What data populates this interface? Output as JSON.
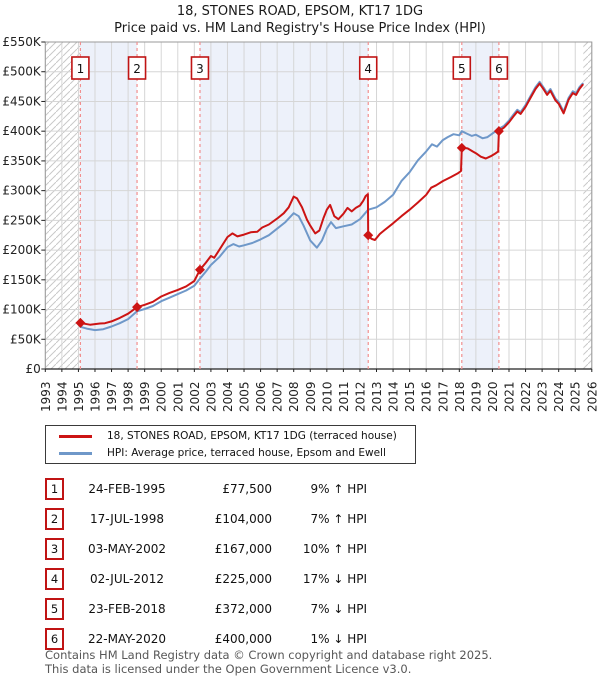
{
  "title": "18, STONES ROAD, EPSOM, KT17 1DG",
  "subtitle": "Price paid vs. HM Land Registry's House Price Index (HPI)",
  "legend": {
    "series1": "18, STONES ROAD, EPSOM, KT17 1DG (terraced house)",
    "series2": "HPI: Average price, terraced house, Epsom and Ewell"
  },
  "transactions": [
    {
      "n": "1",
      "date": "24-FEB-1995",
      "price": "£77,500",
      "hpi": "9% ↑ HPI"
    },
    {
      "n": "2",
      "date": "17-JUL-1998",
      "price": "£104,000",
      "hpi": "7% ↑ HPI"
    },
    {
      "n": "3",
      "date": "03-MAY-2002",
      "price": "£167,000",
      "hpi": "10% ↑ HPI"
    },
    {
      "n": "4",
      "date": "02-JUL-2012",
      "price": "£225,000",
      "hpi": "17% ↓ HPI"
    },
    {
      "n": "5",
      "date": "23-FEB-2018",
      "price": "£372,000",
      "hpi": "7% ↓ HPI"
    },
    {
      "n": "6",
      "date": "22-MAY-2020",
      "price": "£400,000",
      "hpi": "1% ↓ HPI"
    }
  ],
  "footer": {
    "line1": "Contains HM Land Registry data © Crown copyright and database right 2025.",
    "line2": "This data is licensed under the Open Government Licence v3.0."
  },
  "chart_data": {
    "type": "line",
    "x_range": [
      1993,
      2026
    ],
    "y_range": [
      0,
      550
    ],
    "y_tick_step": 50,
    "y_tick_labels": [
      "£0",
      "£50K",
      "£100K",
      "£150K",
      "£200K",
      "£250K",
      "£300K",
      "£350K",
      "£400K",
      "£450K",
      "£500K",
      "£550K"
    ],
    "x_ticks": [
      1993,
      1994,
      1995,
      1996,
      1997,
      1998,
      1999,
      2000,
      2001,
      2002,
      2003,
      2004,
      2005,
      2006,
      2007,
      2008,
      2009,
      2010,
      2011,
      2012,
      2013,
      2014,
      2015,
      2016,
      2017,
      2018,
      2019,
      2020,
      2021,
      2022,
      2023,
      2024,
      2025,
      2026
    ],
    "colors": {
      "price": "#cc1414",
      "hpi": "#6f98c9",
      "dashed": "#f18f8f",
      "band": "#edf1fa",
      "grid": "#d6d6d6",
      "border": "#9a9a9a",
      "hatch": "#c9c9c9",
      "box_border": "#c01414",
      "axis": "#222222"
    },
    "hatch_regions": [
      [
        1993,
        1995.12
      ],
      [
        2025.49,
        2026
      ]
    ],
    "shaded_bands": [
      [
        1995.12,
        1998.54
      ],
      [
        2002.34,
        2012.5
      ],
      [
        2018.15,
        2020.39
      ]
    ],
    "sales": [
      {
        "n": "1",
        "x": 1995.12,
        "y": 77.5
      },
      {
        "n": "2",
        "x": 1998.54,
        "y": 104
      },
      {
        "n": "3",
        "x": 2002.34,
        "y": 167
      },
      {
        "n": "4",
        "x": 2012.5,
        "y": 225
      },
      {
        "n": "5",
        "x": 2018.15,
        "y": 372
      },
      {
        "n": "6",
        "x": 2020.39,
        "y": 400
      }
    ],
    "series": [
      {
        "name": "price_paid",
        "color": "#cc1414",
        "width": 2,
        "points": [
          [
            1995.12,
            77.5
          ],
          [
            1995.4,
            76
          ],
          [
            1995.7,
            74.5
          ],
          [
            1996,
            75.5
          ],
          [
            1996.3,
            76.5
          ],
          [
            1996.6,
            77
          ],
          [
            1997,
            80
          ],
          [
            1997.5,
            86
          ],
          [
            1998,
            93
          ],
          [
            1998.54,
            104
          ],
          [
            1999,
            108
          ],
          [
            1999.5,
            113
          ],
          [
            2000,
            122
          ],
          [
            2000.5,
            128
          ],
          [
            2001,
            133
          ],
          [
            2001.5,
            139
          ],
          [
            2002,
            148
          ],
          [
            2002.34,
            167
          ],
          [
            2002.7,
            179
          ],
          [
            2003,
            190
          ],
          [
            2003.2,
            187
          ],
          [
            2003.5,
            200
          ],
          [
            2004,
            222
          ],
          [
            2004.3,
            228
          ],
          [
            2004.6,
            223
          ],
          [
            2005,
            226
          ],
          [
            2005.4,
            230
          ],
          [
            2005.8,
            231
          ],
          [
            2006.1,
            238
          ],
          [
            2006.5,
            243
          ],
          [
            2007,
            253
          ],
          [
            2007.4,
            262
          ],
          [
            2007.7,
            272
          ],
          [
            2008,
            290
          ],
          [
            2008.2,
            287
          ],
          [
            2008.5,
            272
          ],
          [
            2008.8,
            251
          ],
          [
            2009,
            241
          ],
          [
            2009.3,
            228
          ],
          [
            2009.55,
            233
          ],
          [
            2009.8,
            254
          ],
          [
            2010,
            268
          ],
          [
            2010.2,
            276
          ],
          [
            2010.45,
            257
          ],
          [
            2010.7,
            252
          ],
          [
            2011,
            261
          ],
          [
            2011.25,
            271
          ],
          [
            2011.5,
            265
          ],
          [
            2011.75,
            271
          ],
          [
            2012,
            275
          ],
          [
            2012.2,
            283
          ],
          [
            2012.35,
            291
          ],
          [
            2012.48,
            294
          ],
          [
            2012.5,
            225
          ],
          [
            2012.7,
            219
          ],
          [
            2012.9,
            217
          ],
          [
            2013.2,
            227
          ],
          [
            2013.5,
            234
          ],
          [
            2014,
            245
          ],
          [
            2014.5,
            257
          ],
          [
            2015,
            268
          ],
          [
            2015.5,
            280
          ],
          [
            2016,
            293
          ],
          [
            2016.3,
            305
          ],
          [
            2016.6,
            309
          ],
          [
            2017,
            316
          ],
          [
            2017.5,
            323
          ],
          [
            2017.9,
            329
          ],
          [
            2018.1,
            333
          ],
          [
            2018.15,
            372
          ],
          [
            2018.5,
            371
          ],
          [
            2018.8,
            366
          ],
          [
            2019,
            363
          ],
          [
            2019.3,
            357
          ],
          [
            2019.6,
            354
          ],
          [
            2019.9,
            358
          ],
          [
            2020.15,
            362
          ],
          [
            2020.35,
            366
          ],
          [
            2020.39,
            400
          ],
          [
            2020.7,
            406
          ],
          [
            2021,
            415
          ],
          [
            2021.3,
            426
          ],
          [
            2021.5,
            433
          ],
          [
            2021.7,
            429
          ],
          [
            2022,
            441
          ],
          [
            2022.3,
            456
          ],
          [
            2022.6,
            471
          ],
          [
            2022.85,
            480
          ],
          [
            2023.1,
            470
          ],
          [
            2023.3,
            461
          ],
          [
            2023.5,
            468
          ],
          [
            2023.8,
            452
          ],
          [
            2024,
            446
          ],
          [
            2024.3,
            430
          ],
          [
            2024.6,
            453
          ],
          [
            2024.85,
            464
          ],
          [
            2025.05,
            461
          ],
          [
            2025.25,
            471
          ],
          [
            2025.45,
            478
          ]
        ]
      },
      {
        "name": "hpi",
        "color": "#6f98c9",
        "width": 2,
        "points": [
          [
            1995.12,
            71
          ],
          [
            1995.5,
            68
          ],
          [
            1996,
            65.5
          ],
          [
            1996.5,
            67
          ],
          [
            1997,
            71.5
          ],
          [
            1997.5,
            77
          ],
          [
            1998,
            84
          ],
          [
            1998.54,
            97
          ],
          [
            1999,
            101
          ],
          [
            1999.5,
            106
          ],
          [
            2000,
            114
          ],
          [
            2000.5,
            120
          ],
          [
            2001,
            126
          ],
          [
            2001.5,
            132
          ],
          [
            2002,
            140
          ],
          [
            2002.34,
            152
          ],
          [
            2002.7,
            164
          ],
          [
            2003,
            175
          ],
          [
            2003.5,
            188
          ],
          [
            2004,
            205
          ],
          [
            2004.35,
            210
          ],
          [
            2004.7,
            206
          ],
          [
            2005,
            208
          ],
          [
            2005.5,
            212
          ],
          [
            2006,
            218
          ],
          [
            2006.5,
            225
          ],
          [
            2007,
            236
          ],
          [
            2007.5,
            247
          ],
          [
            2008,
            262
          ],
          [
            2008.3,
            257
          ],
          [
            2008.6,
            241
          ],
          [
            2009,
            216
          ],
          [
            2009.4,
            204
          ],
          [
            2009.7,
            216
          ],
          [
            2010,
            236
          ],
          [
            2010.25,
            247
          ],
          [
            2010.55,
            237
          ],
          [
            2011,
            240
          ],
          [
            2011.5,
            243
          ],
          [
            2012,
            252
          ],
          [
            2012.5,
            268
          ],
          [
            2013,
            272
          ],
          [
            2013.5,
            281
          ],
          [
            2014,
            293
          ],
          [
            2014.5,
            316
          ],
          [
            2015,
            331
          ],
          [
            2015.5,
            351
          ],
          [
            2016,
            366
          ],
          [
            2016.35,
            378
          ],
          [
            2016.65,
            374
          ],
          [
            2017,
            385
          ],
          [
            2017.3,
            390
          ],
          [
            2017.65,
            395
          ],
          [
            2018,
            393
          ],
          [
            2018.15,
            400
          ],
          [
            2018.45,
            396
          ],
          [
            2018.75,
            392
          ],
          [
            2019,
            394
          ],
          [
            2019.4,
            388
          ],
          [
            2019.7,
            390
          ],
          [
            2020,
            396
          ],
          [
            2020.39,
            404
          ],
          [
            2020.7,
            409
          ],
          [
            2021,
            418
          ],
          [
            2021.3,
            429
          ],
          [
            2021.5,
            436
          ],
          [
            2021.7,
            432
          ],
          [
            2022,
            444
          ],
          [
            2022.3,
            459
          ],
          [
            2022.6,
            474
          ],
          [
            2022.85,
            483
          ],
          [
            2023.1,
            473
          ],
          [
            2023.3,
            464
          ],
          [
            2023.5,
            471
          ],
          [
            2023.8,
            455
          ],
          [
            2024,
            449
          ],
          [
            2024.3,
            433
          ],
          [
            2024.6,
            456
          ],
          [
            2024.85,
            467
          ],
          [
            2025.05,
            464
          ],
          [
            2025.25,
            474
          ],
          [
            2025.45,
            480
          ]
        ]
      }
    ]
  }
}
